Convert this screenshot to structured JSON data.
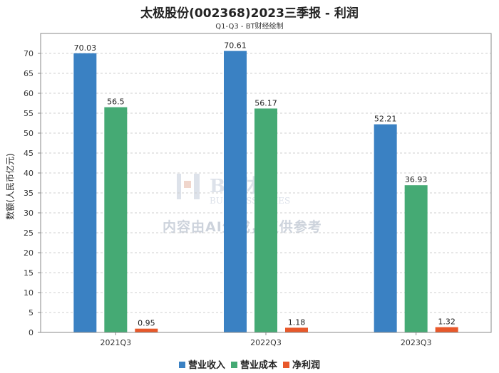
{
  "chart_data": {
    "type": "bar",
    "title": "太极股份(002368)2023三季报 - 利润",
    "subtitle": "Q1-Q3 - BT财经绘制",
    "ylabel": "数额(人民币亿元)",
    "xlabel": "",
    "categories": [
      "2021Q3",
      "2022Q3",
      "2023Q3"
    ],
    "ylim": [
      0,
      75
    ],
    "yticks": [
      0,
      5,
      10,
      15,
      20,
      25,
      30,
      35,
      40,
      45,
      50,
      55,
      60,
      65,
      70
    ],
    "grid": true,
    "legend_position": "bottom",
    "series": [
      {
        "name": "营业收入",
        "color": "#3a81c3",
        "values": [
          70.03,
          70.61,
          52.21
        ]
      },
      {
        "name": "营业成本",
        "color": "#45aa74",
        "values": [
          56.5,
          56.17,
          36.93
        ]
      },
      {
        "name": "净利润",
        "color": "#e8582a",
        "values": [
          0.95,
          1.18,
          1.32
        ]
      }
    ]
  },
  "watermark": {
    "brand": "BT财经",
    "brand_en": "BUSINESS TIMES",
    "notice": "内容由AI生成，仅供参考"
  }
}
